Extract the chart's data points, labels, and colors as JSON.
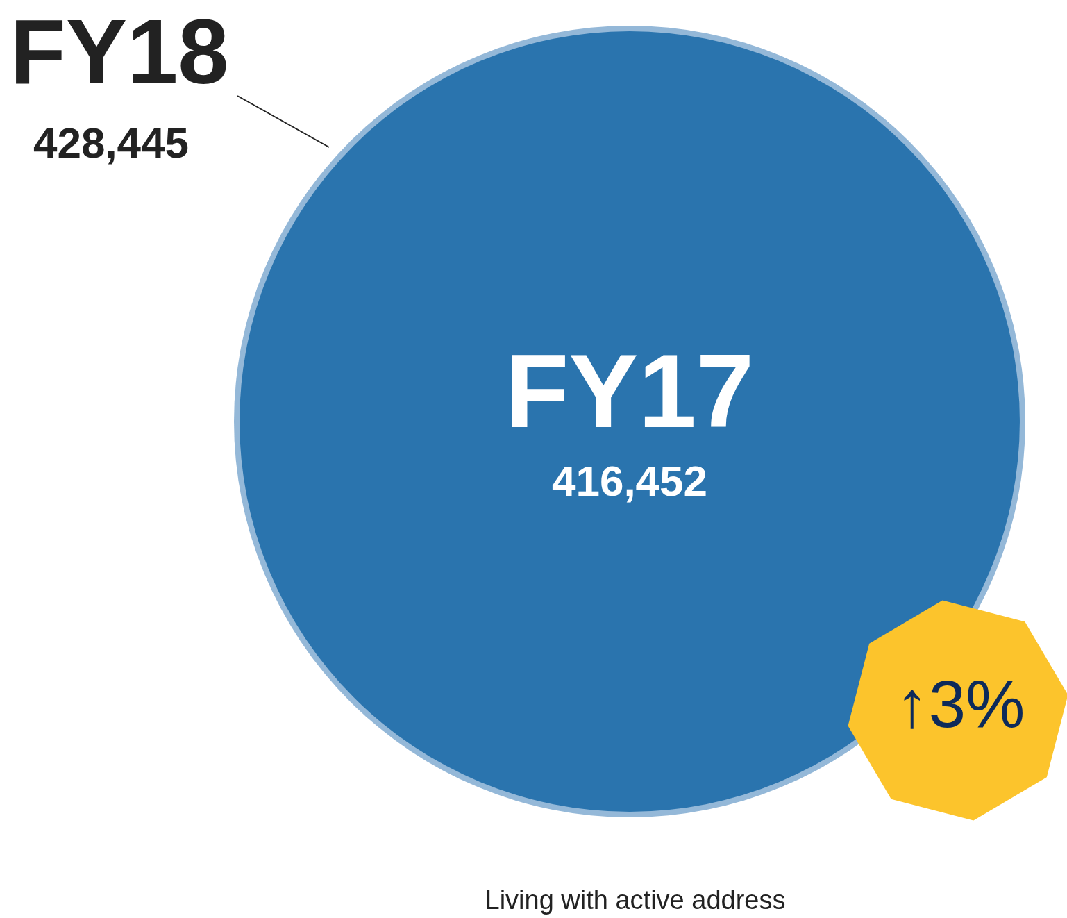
{
  "chart_data": {
    "type": "other",
    "categories": [
      "FY18",
      "FY17"
    ],
    "values": [
      428445,
      416452
    ],
    "colors": [
      "#94b8d8",
      "#2a74ae"
    ],
    "value_labels": [
      "428,445",
      "416,452"
    ],
    "annotations": [
      "↑3%",
      "Living with active address"
    ]
  }
}
